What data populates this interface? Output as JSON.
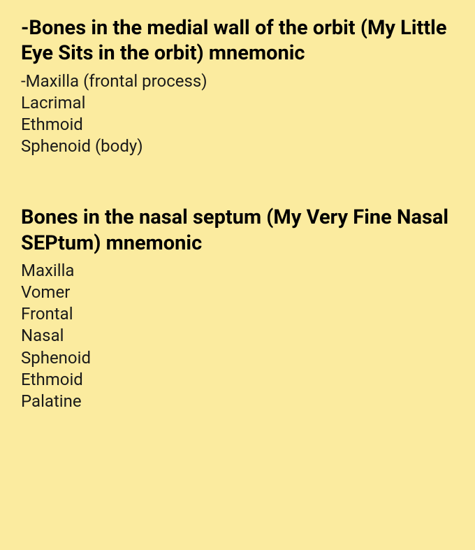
{
  "background_color": "#fbeb9f",
  "text_color": "#1a1a1a",
  "heading_color": "#000000",
  "heading_fontsize": 29,
  "heading_fontweight": 700,
  "item_fontsize": 24,
  "item_fontweight": 400,
  "sections": [
    {
      "heading": "-Bones in the medial wall of the orbit (My Little Eye Sits in the orbit) mnemonic",
      "items": [
        "-Maxilla (frontal process)",
        "Lacrimal",
        "Ethmoid",
        "Sphenoid (body)"
      ]
    },
    {
      "heading": "Bones in the nasal septum (My Very Fine Nasal SEPtum) mnemonic",
      "items": [
        "Maxilla",
        "Vomer",
        "Frontal",
        "Nasal",
        "Sphenoid",
        "Ethmoid",
        "Palatine"
      ]
    }
  ]
}
